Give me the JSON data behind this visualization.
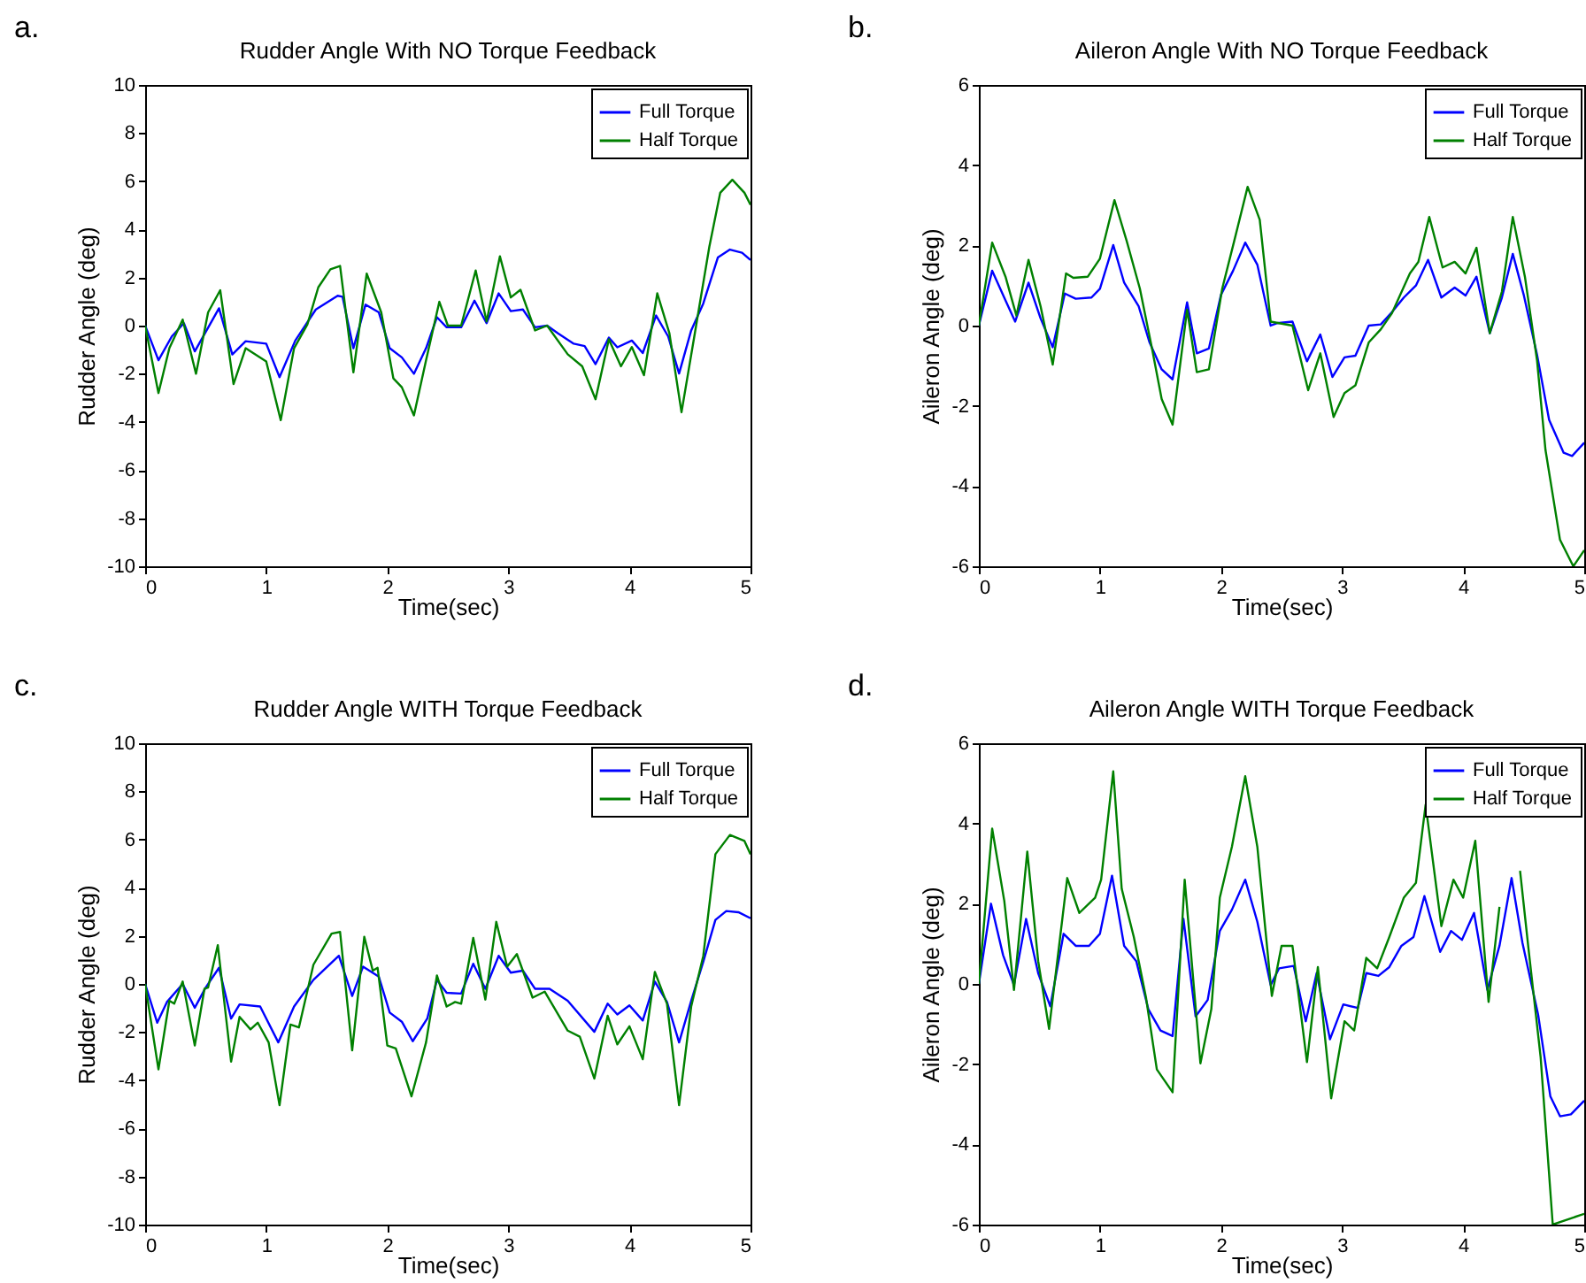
{
  "chart_data": [
    {
      "type": "line",
      "title": "Rudder Angle With NO Torque Feedback",
      "xlabel": "Time(sec)",
      "ylabel": "Rudder Angle (deg)",
      "annotations": [
        "a."
      ],
      "xlim": [
        0,
        5
      ],
      "xticks": [
        0,
        1,
        2,
        3,
        4,
        5
      ],
      "ylim": [
        -10,
        10
      ],
      "yticks": [
        -10,
        -8,
        -6,
        -4,
        -2,
        0,
        2,
        4,
        6,
        8,
        10
      ],
      "legend": "top right",
      "series": [
        {
          "name": "Full Torque",
          "color": "#0000ff",
          "x": [
            0,
            0.11,
            0.22,
            0.32,
            0.41,
            0.61,
            0.72,
            0.83,
            1.0,
            1.11,
            1.24,
            1.41,
            1.59,
            1.63,
            1.72,
            1.82,
            1.93,
            2.02,
            2.12,
            2.22,
            2.32,
            2.41,
            2.49,
            2.61,
            2.72,
            2.82,
            2.92,
            3.02,
            3.12,
            3.22,
            3.32,
            3.41,
            3.54,
            3.63,
            3.72,
            3.83,
            3.9,
            4.02,
            4.11,
            4.22,
            4.32,
            4.41,
            4.51,
            4.61,
            4.73,
            4.83,
            4.93,
            5.0
          ],
          "values": [
            0,
            -1.44,
            -0.45,
            0.1,
            -1.07,
            0.72,
            -1.2,
            -0.65,
            -0.75,
            -2.14,
            -0.62,
            0.67,
            1.24,
            1.2,
            -0.94,
            0.87,
            0.55,
            -0.94,
            -1.32,
            -2.0,
            -0.94,
            0.35,
            -0.07,
            -0.07,
            1.04,
            0.1,
            1.34,
            0.6,
            0.67,
            -0.07,
            0,
            -0.32,
            -0.75,
            -0.85,
            -1.6,
            -0.5,
            -0.9,
            -0.62,
            -1.14,
            0.42,
            -0.45,
            -1.99,
            -0.2,
            0.92,
            2.83,
            3.16,
            3.03,
            2.73
          ]
        },
        {
          "name": "Half Torque",
          "color": "#008000",
          "x": [
            0,
            0.11,
            0.2,
            0.31,
            0.42,
            0.52,
            0.62,
            0.73,
            0.83,
            1.0,
            1.12,
            1.23,
            1.34,
            1.43,
            1.53,
            1.61,
            1.72,
            1.83,
            1.95,
            2.05,
            2.12,
            2.22,
            2.32,
            2.43,
            2.5,
            2.61,
            2.73,
            2.82,
            2.93,
            3.02,
            3.1,
            3.22,
            3.32,
            3.49,
            3.61,
            3.72,
            3.83,
            3.93,
            4.02,
            4.12,
            4.23,
            4.33,
            4.43,
            4.54,
            4.66,
            4.75,
            4.85,
            4.95,
            5.0
          ],
          "values": [
            0,
            -2.8,
            -0.94,
            0.25,
            -2.0,
            0.55,
            1.47,
            -2.43,
            -0.94,
            -1.49,
            -3.93,
            -0.94,
            0.05,
            1.59,
            2.34,
            2.48,
            -1.94,
            2.16,
            0.55,
            -2.19,
            -2.56,
            -3.73,
            -1.44,
            0.99,
            0,
            0,
            2.29,
            0.17,
            2.88,
            1.17,
            1.49,
            -0.2,
            0,
            -1.19,
            -1.69,
            -3.06,
            -0.57,
            -1.69,
            -0.89,
            -2.06,
            1.34,
            -0.32,
            -3.6,
            -0.32,
            3.28,
            5.52,
            6.06,
            5.52,
            5.02
          ]
        }
      ]
    },
    {
      "type": "line",
      "title": "Aileron Angle With NO Torque Feedback",
      "xlabel": "Time(sec)",
      "ylabel": "Aileron Angle (deg)",
      "annotations": [
        "b."
      ],
      "xlim": [
        0,
        5
      ],
      "xticks": [
        0,
        1,
        2,
        3,
        4,
        5
      ],
      "ylim": [
        -6,
        6
      ],
      "yticks": [
        -6,
        -4,
        -2,
        0,
        2,
        4,
        6
      ],
      "legend": "top right",
      "series": [
        {
          "name": "Full Torque",
          "color": "#0000ff",
          "x": [
            0,
            0.11,
            0.22,
            0.3,
            0.41,
            0.51,
            0.61,
            0.71,
            0.8,
            0.93,
            1.0,
            1.11,
            1.2,
            1.32,
            1.41,
            1.51,
            1.6,
            1.72,
            1.8,
            1.9,
            2.0,
            2.1,
            2.2,
            2.3,
            2.41,
            2.46,
            2.59,
            2.71,
            2.82,
            2.92,
            3.02,
            3.11,
            3.22,
            3.32,
            3.41,
            3.51,
            3.61,
            3.71,
            3.82,
            3.93,
            4.02,
            4.11,
            4.22,
            4.32,
            4.41,
            4.5,
            4.61,
            4.71,
            4.83,
            4.9,
            5.0
          ],
          "values": [
            0,
            1.37,
            0.63,
            0.1,
            1.07,
            0.18,
            -0.54,
            0.8,
            0.67,
            0.7,
            0.92,
            2.01,
            1.07,
            0.48,
            -0.42,
            -1.09,
            -1.34,
            0.58,
            -0.69,
            -0.57,
            0.77,
            1.37,
            2.07,
            1.52,
            0,
            0.06,
            0.1,
            -0.89,
            -0.22,
            -1.28,
            -0.79,
            -0.75,
            0,
            0.03,
            0.33,
            0.7,
            1.0,
            1.64,
            0.7,
            0.95,
            0.75,
            1.22,
            -0.19,
            0.7,
            1.79,
            0.77,
            -0.72,
            -2.35,
            -3.17,
            -3.25,
            -2.92
          ]
        },
        {
          "name": "Half Torque",
          "color": "#008000",
          "x": [
            0,
            0.11,
            0.22,
            0.31,
            0.41,
            0.51,
            0.61,
            0.72,
            0.78,
            0.9,
            1.0,
            1.12,
            1.22,
            1.33,
            1.43,
            1.51,
            1.6,
            1.72,
            1.8,
            1.9,
            2.01,
            2.11,
            2.22,
            2.32,
            2.41,
            2.59,
            2.72,
            2.82,
            2.93,
            3.02,
            3.11,
            3.22,
            3.32,
            3.41,
            3.56,
            3.63,
            3.72,
            3.83,
            3.93,
            4.02,
            4.11,
            4.22,
            4.32,
            4.41,
            4.51,
            4.61,
            4.68,
            4.8,
            4.91,
            5.0
          ],
          "values": [
            0,
            2.07,
            1.22,
            0.25,
            1.64,
            0.48,
            -0.97,
            1.3,
            1.19,
            1.22,
            1.67,
            3.13,
            2.12,
            0.92,
            -0.57,
            -1.83,
            -2.47,
            0.4,
            -1.16,
            -1.09,
            0.92,
            2.12,
            3.46,
            2.64,
            0.1,
            0,
            -1.61,
            -0.69,
            -2.28,
            -1.68,
            -1.49,
            -0.42,
            -0.09,
            0.3,
            1.3,
            1.59,
            2.71,
            1.45,
            1.59,
            1.3,
            1.94,
            -0.19,
            0.85,
            2.71,
            1.22,
            -0.86,
            -3.1,
            -5.34,
            -6.0,
            -5.6
          ]
        }
      ]
    },
    {
      "type": "line",
      "title": "Rudder Angle WITH Torque Feedback",
      "xlabel": "Time(sec)",
      "ylabel": "Rudder Angle (deg)",
      "annotations": [
        "c."
      ],
      "xlim": [
        0,
        5
      ],
      "xticks": [
        0,
        1,
        2,
        3,
        4,
        5
      ],
      "ylim": [
        -10,
        10
      ],
      "yticks": [
        -10,
        -8,
        -6,
        -4,
        -2,
        0,
        2,
        4,
        6,
        8,
        10
      ],
      "legend": "top right",
      "series": [
        {
          "name": "Full Torque",
          "color": "#0000ff",
          "x": [
            0,
            0.1,
            0.18,
            0.31,
            0.41,
            0.5,
            0.61,
            0.71,
            0.78,
            0.95,
            1.1,
            1.23,
            1.39,
            1.6,
            1.71,
            1.8,
            1.93,
            2.02,
            2.12,
            2.21,
            2.33,
            2.41,
            2.49,
            2.61,
            2.71,
            2.81,
            2.92,
            3.02,
            3.12,
            3.22,
            3.34,
            3.49,
            3.71,
            3.82,
            3.9,
            4.0,
            4.11,
            4.21,
            4.31,
            4.41,
            4.51,
            4.61,
            4.71,
            4.8,
            4.9,
            5.0
          ],
          "values": [
            0,
            -1.61,
            -0.75,
            0,
            -0.99,
            -0.15,
            0.67,
            -1.44,
            -0.85,
            -0.94,
            -2.43,
            -0.94,
            0.17,
            1.17,
            -0.5,
            0.72,
            0.3,
            -1.19,
            -1.57,
            -2.38,
            -1.44,
            0.17,
            -0.37,
            -0.4,
            0.84,
            -0.2,
            1.17,
            0.47,
            0.55,
            -0.2,
            -0.2,
            -0.7,
            -1.99,
            -0.82,
            -1.27,
            -0.89,
            -1.52,
            0.1,
            -0.75,
            -2.43,
            -0.7,
            0.92,
            2.66,
            3.03,
            2.98,
            2.73
          ]
        },
        {
          "name": "Half Torque",
          "color": "#008000",
          "x": [
            0,
            0.11,
            0.2,
            0.24,
            0.31,
            0.41,
            0.49,
            0.52,
            0.6,
            0.71,
            0.78,
            0.87,
            0.93,
            1.02,
            1.11,
            1.2,
            1.27,
            1.39,
            1.54,
            1.61,
            1.71,
            1.81,
            1.88,
            1.92,
            2.0,
            2.07,
            2.2,
            2.32,
            2.41,
            2.49,
            2.56,
            2.61,
            2.71,
            2.81,
            2.9,
            2.99,
            3.07,
            3.2,
            3.3,
            3.49,
            3.59,
            3.71,
            3.82,
            3.9,
            4.0,
            4.11,
            4.21,
            4.31,
            4.41,
            4.51,
            4.61,
            4.71,
            4.83,
            4.95,
            5.0
          ],
          "values": [
            0,
            -3.55,
            -0.7,
            -0.82,
            0.1,
            -2.56,
            -0.2,
            -0.15,
            1.61,
            -3.23,
            -1.37,
            -1.89,
            -1.61,
            -2.43,
            -5.04,
            -1.69,
            -1.81,
            0.8,
            2.09,
            2.16,
            -2.76,
            1.96,
            0.55,
            0.67,
            -2.56,
            -2.68,
            -4.67,
            -2.43,
            0.35,
            -0.94,
            -0.75,
            -0.82,
            1.91,
            -0.65,
            2.58,
            0.72,
            1.24,
            -0.57,
            -0.32,
            -1.94,
            -2.19,
            -3.93,
            -1.32,
            -2.51,
            -1.76,
            -3.13,
            0.5,
            -0.82,
            -5.04,
            -0.94,
            1.17,
            5.39,
            6.19,
            5.94,
            5.39
          ]
        }
      ]
    },
    {
      "type": "line",
      "title": "Aileron Angle WITH Torque Feedback",
      "xlabel": "Time(sec)",
      "ylabel": "Aileron Angle (deg)",
      "annotations": [
        "d."
      ],
      "xlim": [
        0,
        5
      ],
      "xticks": [
        0,
        1,
        2,
        3,
        4,
        5
      ],
      "ylim": [
        -6,
        6
      ],
      "yticks": [
        -6,
        -4,
        -2,
        0,
        2,
        4,
        6
      ],
      "legend": "top right",
      "series": [
        {
          "name": "Full Torque",
          "color": "#0000ff",
          "x": [
            0,
            0.1,
            0.2,
            0.29,
            0.39,
            0.49,
            0.59,
            0.7,
            0.8,
            0.91,
            1.0,
            1.1,
            1.2,
            1.3,
            1.4,
            1.5,
            1.6,
            1.69,
            1.79,
            1.89,
            1.99,
            2.09,
            2.2,
            2.3,
            2.41,
            2.48,
            2.6,
            2.7,
            2.79,
            2.9,
            3.01,
            3.13,
            3.2,
            3.3,
            3.39,
            3.49,
            3.59,
            3.68,
            3.81,
            3.9,
            3.99,
            4.09,
            4.2,
            4.3,
            4.4,
            4.49,
            4.62,
            4.72,
            4.8,
            4.89,
            5.0
          ],
          "values": [
            0,
            2.0,
            0.72,
            -0.03,
            1.62,
            0.27,
            -0.56,
            1.25,
            0.95,
            0.95,
            1.25,
            2.7,
            0.95,
            0.57,
            -0.63,
            -1.16,
            -1.3,
            1.62,
            -0.81,
            -0.4,
            1.32,
            1.85,
            2.6,
            1.55,
            -0.03,
            0.39,
            0.45,
            -0.93,
            0.27,
            -1.38,
            -0.51,
            -0.6,
            0.27,
            0.2,
            0.42,
            0.95,
            1.17,
            2.19,
            0.8,
            1.32,
            1.1,
            1.77,
            -0.15,
            0.95,
            2.64,
            1.02,
            -0.78,
            -2.8,
            -3.3,
            -3.25,
            -2.91
          ]
        },
        {
          "name": "Half Torque",
          "color": "#008000",
          "x": [
            0,
            0.11,
            0.21,
            0.29,
            0.4,
            0.49,
            0.58,
            0.73,
            0.83,
            0.96,
            1.01,
            1.11,
            1.18,
            1.28,
            1.38,
            1.47,
            1.6,
            1.7,
            1.83,
            1.92,
            1.99,
            2.09,
            2.2,
            2.3,
            2.42,
            2.5,
            2.59,
            2.71,
            2.8,
            2.91,
            3.02,
            3.1,
            3.2,
            3.29,
            3.39,
            3.51,
            3.61,
            3.69,
            3.82,
            3.92,
            4.0,
            4.1,
            4.21,
            4.3,
            4.37,
            4.47,
            4.54,
            4.64,
            4.74,
            5.0
          ],
          "values": [
            0,
            3.87,
            2.07,
            -0.15,
            3.3,
            0.57,
            -1.12,
            2.64,
            1.77,
            2.15,
            2.6,
            5.3,
            2.37,
            1.17,
            -0.33,
            -2.13,
            -2.7,
            2.6,
            -1.98,
            -0.63,
            2.15,
            3.42,
            5.18,
            3.42,
            -0.3,
            0.95,
            0.95,
            -1.95,
            0.42,
            -2.85,
            -0.93,
            -1.16,
            0.65,
            0.39,
            1.17,
            2.15,
            2.52,
            4.47,
            1.44,
            2.6,
            2.15,
            3.57,
            -0.45,
            1.92,
            null,
            2.82,
            0.87,
            -1.83,
            -6.0,
            -5.73
          ]
        }
      ]
    }
  ]
}
